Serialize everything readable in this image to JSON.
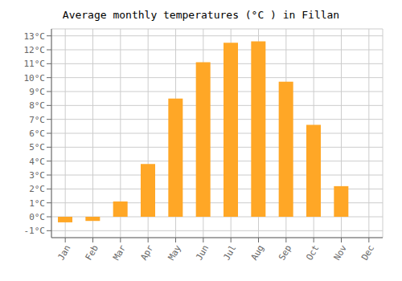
{
  "chart_data": {
    "type": "bar",
    "title": "Average monthly temperatures (°C ) in Fillan",
    "categories": [
      "Jan",
      "Feb",
      "Mar",
      "Apr",
      "May",
      "Jun",
      "Jul",
      "Aug",
      "Sep",
      "Oct",
      "Nov",
      "Dec"
    ],
    "values": [
      -0.4,
      -0.3,
      1.1,
      3.8,
      8.5,
      11.1,
      12.5,
      12.6,
      9.7,
      6.6,
      2.2,
      0.0
    ],
    "color": "#FFA726",
    "ylim": [
      -1.5,
      13.5
    ],
    "yticks": [
      {
        "value": -1,
        "label": "-1°C"
      },
      {
        "value": 0,
        "label": "0°C"
      },
      {
        "value": 1,
        "label": "1°C"
      },
      {
        "value": 2,
        "label": "2°C"
      },
      {
        "value": 3,
        "label": "3°C"
      },
      {
        "value": 4,
        "label": "4°C"
      },
      {
        "value": 5,
        "label": "5°C"
      },
      {
        "value": 6,
        "label": "6°C"
      },
      {
        "value": 7,
        "label": "7°C"
      },
      {
        "value": 8,
        "label": "8°C"
      },
      {
        "value": 9,
        "label": "9°C"
      },
      {
        "value": 10,
        "label": "10°C"
      },
      {
        "value": 11,
        "label": "11°C"
      },
      {
        "value": 12,
        "label": "12°C"
      },
      {
        "value": 13,
        "label": "13°C"
      }
    ],
    "grid": true
  }
}
